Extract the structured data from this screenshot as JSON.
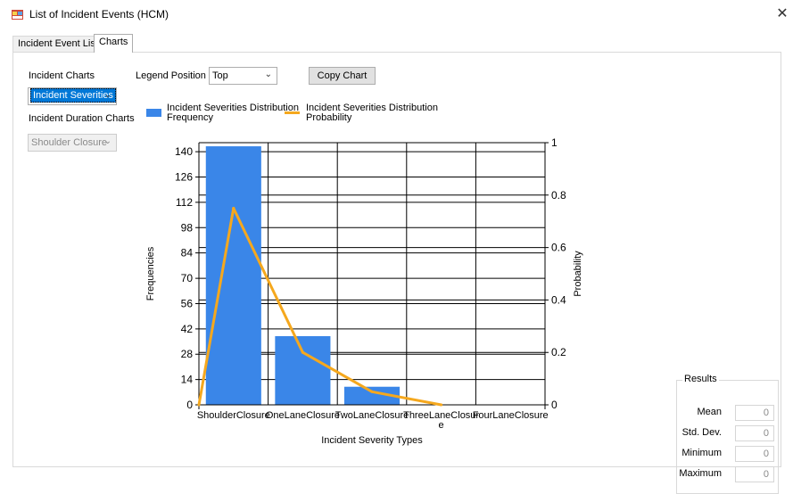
{
  "window": {
    "title": "List of Incident Events (HCM)",
    "close_glyph": "✕"
  },
  "tabs": [
    {
      "label": "Incident Event List",
      "active": false
    },
    {
      "label": "Charts",
      "active": true
    }
  ],
  "left_panel": {
    "incident_charts_label": "Incident Charts",
    "incident_charts_value": "Incident Severities",
    "duration_charts_label": "Incident Duration Charts",
    "duration_charts_value": "Shoulder Closure"
  },
  "toolbar": {
    "legend_position_label": "Legend Position",
    "legend_position_value": "Top",
    "copy_chart_label": "Copy Chart"
  },
  "chart_data": {
    "type": "bar",
    "legend_placement": "top",
    "legend": [
      {
        "line1": "Incident Severities Distribution",
        "line2": "Frequency",
        "kind": "bar",
        "color": "#3a86e8"
      },
      {
        "line1": "Incident Severities Distribution",
        "line2": "Probability",
        "kind": "line",
        "color": "#f5a81e"
      }
    ],
    "categories": [
      "ShoulderClosure",
      "OneLaneClosure",
      "TwoLaneClosure",
      "ThreeLaneClosure",
      "FourLaneClosure"
    ],
    "x_tick_labels": [
      [
        "ShoulderClosure"
      ],
      [
        "OneLaneClosure"
      ],
      [
        "TwoLaneClosure"
      ],
      [
        "ThreeLaneClosur",
        "e"
      ],
      [
        "FourLaneClosure"
      ]
    ],
    "series": [
      {
        "name": "Incident Severities Distribution Frequency",
        "kind": "bar",
        "axis": "left",
        "color": "#3a86e8",
        "values": [
          143,
          38,
          10,
          0,
          0
        ]
      },
      {
        "name": "Incident Severities Distribution Probability",
        "kind": "line",
        "axis": "right",
        "color": "#f5a81e",
        "values": [
          0,
          0.75,
          0.2,
          0.05,
          0
        ]
      }
    ],
    "xlabel": "Incident Severity Types",
    "ylabel": "Frequencies",
    "y2label": "Probability",
    "ylim": [
      0,
      145
    ],
    "y_ticks": [
      0,
      14,
      28,
      42,
      56,
      70,
      84,
      98,
      112,
      126,
      140
    ],
    "y2lim": [
      0,
      1.0
    ],
    "y2_ticks": [
      0,
      0.2,
      0.4,
      0.6,
      0.8,
      1
    ],
    "y2_tick_labels": [
      "0",
      "0.2",
      "0.4",
      "0.6",
      "0.8",
      "1"
    ],
    "grid": true
  },
  "results": {
    "title": "Results",
    "items": [
      {
        "label": "Mean",
        "value": "0"
      },
      {
        "label": "Std. Dev.",
        "value": "0"
      },
      {
        "label": "Minimum",
        "value": "0"
      },
      {
        "label": "Maximum",
        "value": "0"
      }
    ]
  }
}
